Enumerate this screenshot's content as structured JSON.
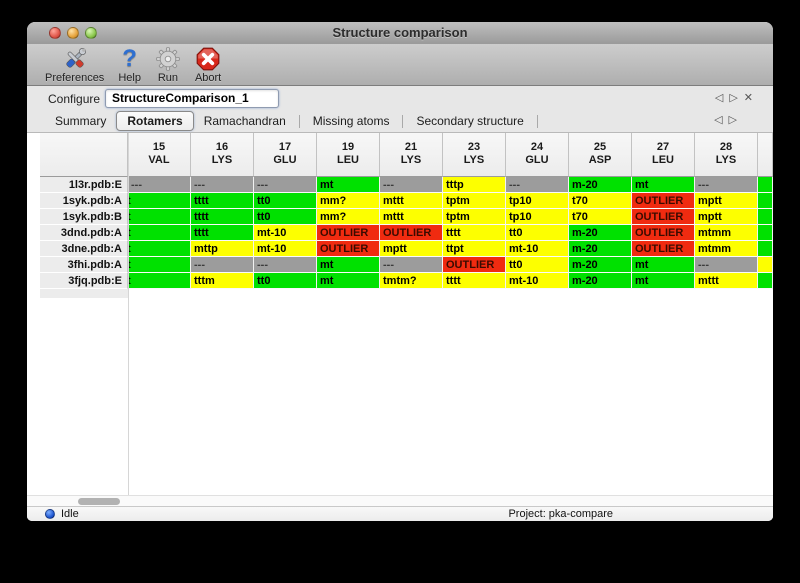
{
  "window": {
    "title": "Structure comparison"
  },
  "toolbar": {
    "items": [
      {
        "label": "Preferences"
      },
      {
        "label": "Help"
      },
      {
        "label": "Run"
      },
      {
        "label": "Abort"
      }
    ]
  },
  "configure": {
    "label": "Configure",
    "value": "StructureComparison_1"
  },
  "pager": {
    "prev": "◁",
    "next": "▷",
    "close": "✕"
  },
  "tabs": [
    {
      "label": "Summary",
      "selected": false
    },
    {
      "label": "Rotamers",
      "selected": true
    },
    {
      "label": "Ramachandran",
      "selected": false
    },
    {
      "label": "Missing atoms",
      "selected": false
    },
    {
      "label": "Secondary structure",
      "selected": false
    }
  ],
  "colors": {
    "favored_green": "#00e100",
    "allowed_yellow": "#fdff00",
    "outlier_red": "#f02b10",
    "missing_gray": "#9c9c9c"
  },
  "table": {
    "columns": [
      {
        "num": "15",
        "res": "VAL"
      },
      {
        "num": "16",
        "res": "LYS"
      },
      {
        "num": "17",
        "res": "GLU"
      },
      {
        "num": "19",
        "res": "LEU"
      },
      {
        "num": "21",
        "res": "LYS"
      },
      {
        "num": "23",
        "res": "LYS"
      },
      {
        "num": "24",
        "res": "GLU"
      },
      {
        "num": "25",
        "res": "ASP"
      },
      {
        "num": "27",
        "res": "LEU"
      },
      {
        "num": "28",
        "res": "LYS"
      }
    ],
    "rows": [
      {
        "label": "1l3r.pdb:E",
        "sliver": "green",
        "cells": [
          {
            "v": "---",
            "c": "gray"
          },
          {
            "v": "---",
            "c": "gray"
          },
          {
            "v": "---",
            "c": "gray"
          },
          {
            "v": "mt",
            "c": "green"
          },
          {
            "v": "---",
            "c": "gray"
          },
          {
            "v": "tttp",
            "c": "yellow"
          },
          {
            "v": "---",
            "c": "gray"
          },
          {
            "v": "m-20",
            "c": "green"
          },
          {
            "v": "mt",
            "c": "green"
          },
          {
            "v": "---",
            "c": "gray"
          }
        ]
      },
      {
        "label": "1syk.pdb:A",
        "sliver": "green",
        "cells": [
          {
            "v": "t",
            "c": "green",
            "clip": true
          },
          {
            "v": "tttt",
            "c": "green"
          },
          {
            "v": "tt0",
            "c": "green"
          },
          {
            "v": "mm?",
            "c": "yellow"
          },
          {
            "v": "mttt",
            "c": "yellow"
          },
          {
            "v": "tptm",
            "c": "yellow"
          },
          {
            "v": "tp10",
            "c": "yellow"
          },
          {
            "v": "t70",
            "c": "yellow"
          },
          {
            "v": "OUTLIER",
            "c": "red"
          },
          {
            "v": "mptt",
            "c": "yellow"
          }
        ]
      },
      {
        "label": "1syk.pdb:B",
        "sliver": "green",
        "cells": [
          {
            "v": "t",
            "c": "green",
            "clip": true
          },
          {
            "v": "tttt",
            "c": "green"
          },
          {
            "v": "tt0",
            "c": "green"
          },
          {
            "v": "mm?",
            "c": "yellow"
          },
          {
            "v": "mttt",
            "c": "yellow"
          },
          {
            "v": "tptm",
            "c": "yellow"
          },
          {
            "v": "tp10",
            "c": "yellow"
          },
          {
            "v": "t70",
            "c": "yellow"
          },
          {
            "v": "OUTLIER",
            "c": "red"
          },
          {
            "v": "mptt",
            "c": "yellow"
          }
        ]
      },
      {
        "label": "3dnd.pdb:A",
        "sliver": "green",
        "cells": [
          {
            "v": "t",
            "c": "green",
            "clip": true
          },
          {
            "v": "tttt",
            "c": "green"
          },
          {
            "v": "mt-10",
            "c": "yellow"
          },
          {
            "v": "OUTLIER",
            "c": "red"
          },
          {
            "v": "OUTLIER",
            "c": "red"
          },
          {
            "v": "tttt",
            "c": "yellow"
          },
          {
            "v": "tt0",
            "c": "yellow"
          },
          {
            "v": "m-20",
            "c": "green"
          },
          {
            "v": "OUTLIER",
            "c": "red"
          },
          {
            "v": "mtmm",
            "c": "yellow"
          }
        ]
      },
      {
        "label": "3dne.pdb:A",
        "sliver": "green",
        "cells": [
          {
            "v": "t",
            "c": "green",
            "clip": true
          },
          {
            "v": "mttp",
            "c": "yellow"
          },
          {
            "v": "mt-10",
            "c": "yellow"
          },
          {
            "v": "OUTLIER",
            "c": "red"
          },
          {
            "v": "mptt",
            "c": "yellow"
          },
          {
            "v": "ttpt",
            "c": "yellow"
          },
          {
            "v": "mt-10",
            "c": "yellow"
          },
          {
            "v": "m-20",
            "c": "green"
          },
          {
            "v": "OUTLIER",
            "c": "red"
          },
          {
            "v": "mtmm",
            "c": "yellow"
          }
        ]
      },
      {
        "label": "3fhi.pdb:A",
        "sliver": "yellow",
        "cells": [
          {
            "v": "t",
            "c": "green",
            "clip": true
          },
          {
            "v": "---",
            "c": "gray"
          },
          {
            "v": "---",
            "c": "gray"
          },
          {
            "v": "mt",
            "c": "green"
          },
          {
            "v": "---",
            "c": "gray"
          },
          {
            "v": "OUTLIER",
            "c": "red"
          },
          {
            "v": "tt0",
            "c": "yellow"
          },
          {
            "v": "m-20",
            "c": "green"
          },
          {
            "v": "mt",
            "c": "green"
          },
          {
            "v": "---",
            "c": "gray"
          }
        ]
      },
      {
        "label": "3fjq.pdb:E",
        "sliver": "green",
        "cells": [
          {
            "v": "t",
            "c": "green",
            "clip": true
          },
          {
            "v": "tttm",
            "c": "yellow"
          },
          {
            "v": "tt0",
            "c": "green"
          },
          {
            "v": "mt",
            "c": "green"
          },
          {
            "v": "tmtm?",
            "c": "yellow"
          },
          {
            "v": "tttt",
            "c": "yellow"
          },
          {
            "v": "mt-10",
            "c": "yellow"
          },
          {
            "v": "m-20",
            "c": "green"
          },
          {
            "v": "mt",
            "c": "green"
          },
          {
            "v": "mttt",
            "c": "yellow"
          }
        ]
      }
    ]
  },
  "statusbar": {
    "status": "Idle",
    "project": "Project: pka-compare"
  }
}
